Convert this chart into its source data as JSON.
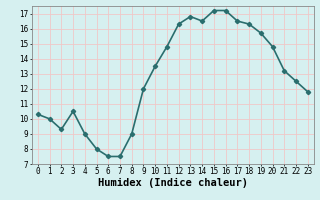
{
  "x": [
    0,
    1,
    2,
    3,
    4,
    5,
    6,
    7,
    8,
    9,
    10,
    11,
    12,
    13,
    14,
    15,
    16,
    17,
    18,
    19,
    20,
    21,
    22,
    23
  ],
  "y": [
    10.3,
    10.0,
    9.3,
    10.5,
    9.0,
    8.0,
    7.5,
    7.5,
    9.0,
    12.0,
    13.5,
    14.8,
    16.3,
    16.8,
    16.5,
    17.2,
    17.2,
    16.5,
    16.3,
    15.7,
    14.8,
    13.2,
    12.5,
    11.8
  ],
  "line_color": "#2a6e6e",
  "marker": "D",
  "marker_size": 2.2,
  "bg_color": "#d6f0f0",
  "grid_color": "#f0c8c8",
  "xlabel": "Humidex (Indice chaleur)",
  "ylim": [
    7,
    17.5
  ],
  "xlim": [
    -0.5,
    23.5
  ],
  "yticks": [
    7,
    8,
    9,
    10,
    11,
    12,
    13,
    14,
    15,
    16,
    17
  ],
  "xticks": [
    0,
    1,
    2,
    3,
    4,
    5,
    6,
    7,
    8,
    9,
    10,
    11,
    12,
    13,
    14,
    15,
    16,
    17,
    18,
    19,
    20,
    21,
    22,
    23
  ],
  "tick_fontsize": 5.5,
  "xlabel_fontsize": 7.5,
  "line_width": 1.2
}
